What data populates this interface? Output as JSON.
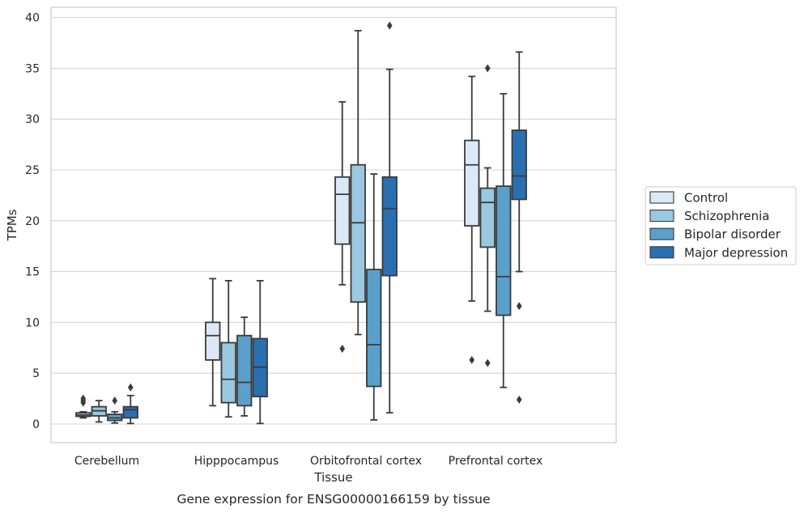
{
  "chart_data": {
    "type": "box",
    "title": "",
    "caption": "Gene expression for ENSG00000166159 by tissue",
    "xlabel": "Tissue",
    "ylabel": "TPMs",
    "ylim": [
      -1.8,
      41.2
    ],
    "yticks": [
      0,
      5,
      10,
      15,
      20,
      25,
      30,
      35,
      40
    ],
    "grid": "horizontal",
    "legend_position": "right",
    "categories": [
      "Cerebellum",
      "Hipppocampus",
      "Orbitofrontal cortex",
      "Prefrontal cortex"
    ],
    "series": [
      {
        "name": "Control",
        "color": "#dbe9f6",
        "boxes": [
          {
            "whisker_low": 0.6,
            "q1": 0.75,
            "median": 0.9,
            "q3": 1.1,
            "whisker_high": 1.2,
            "outliers": [
              2.1,
              2.3,
              2.5
            ]
          },
          {
            "whisker_low": 1.8,
            "q1": 6.3,
            "median": 8.7,
            "q3": 10.0,
            "whisker_high": 14.3,
            "outliers": []
          },
          {
            "whisker_low": 13.7,
            "q1": 17.7,
            "median": 22.6,
            "q3": 24.3,
            "whisker_high": 31.7,
            "outliers": [
              7.4
            ]
          },
          {
            "whisker_low": 12.1,
            "q1": 19.5,
            "median": 25.5,
            "q3": 27.9,
            "whisker_high": 34.2,
            "outliers": [
              6.3
            ]
          }
        ]
      },
      {
        "name": "Schizophrenia",
        "color": "#9ac8e0",
        "boxes": [
          {
            "whisker_low": 0.2,
            "q1": 0.8,
            "median": 1.3,
            "q3": 1.7,
            "whisker_high": 2.3,
            "outliers": []
          },
          {
            "whisker_low": 0.7,
            "q1": 2.1,
            "median": 4.4,
            "q3": 8.0,
            "whisker_high": 14.1,
            "outliers": []
          },
          {
            "whisker_low": 8.8,
            "q1": 12.0,
            "median": 19.8,
            "q3": 25.5,
            "whisker_high": 38.7,
            "outliers": []
          },
          {
            "whisker_low": 11.1,
            "q1": 17.4,
            "median": 21.8,
            "q3": 23.2,
            "whisker_high": 25.2,
            "outliers": [
              35.0,
              6.0
            ]
          }
        ]
      },
      {
        "name": "Bipolar disorder",
        "color": "#5b9fcb",
        "boxes": [
          {
            "whisker_low": 0.1,
            "q1": 0.35,
            "median": 0.6,
            "q3": 0.95,
            "whisker_high": 1.2,
            "outliers": [
              2.3
            ]
          },
          {
            "whisker_low": 0.8,
            "q1": 1.8,
            "median": 4.1,
            "q3": 8.7,
            "whisker_high": 10.5,
            "outliers": []
          },
          {
            "whisker_low": 0.4,
            "q1": 3.7,
            "median": 7.8,
            "q3": 15.2,
            "whisker_high": 24.6,
            "outliers": []
          },
          {
            "whisker_low": 3.6,
            "q1": 10.7,
            "median": 14.5,
            "q3": 23.4,
            "whisker_high": 32.5,
            "outliers": []
          }
        ]
      },
      {
        "name": "Major depression",
        "color": "#2a6fb0",
        "boxes": [
          {
            "whisker_low": 0.05,
            "q1": 0.6,
            "median": 1.4,
            "q3": 1.7,
            "whisker_high": 2.8,
            "outliers": [
              3.6
            ]
          },
          {
            "whisker_low": 0.05,
            "q1": 2.7,
            "median": 5.6,
            "q3": 8.4,
            "whisker_high": 14.1,
            "outliers": []
          },
          {
            "whisker_low": 1.1,
            "q1": 14.6,
            "median": 21.2,
            "q3": 24.3,
            "whisker_high": 34.9,
            "outliers": [
              39.2
            ]
          },
          {
            "whisker_low": 15.0,
            "q1": 22.1,
            "median": 24.4,
            "q3": 28.9,
            "whisker_high": 36.6,
            "outliers": [
              11.6,
              2.4
            ]
          }
        ]
      }
    ]
  }
}
